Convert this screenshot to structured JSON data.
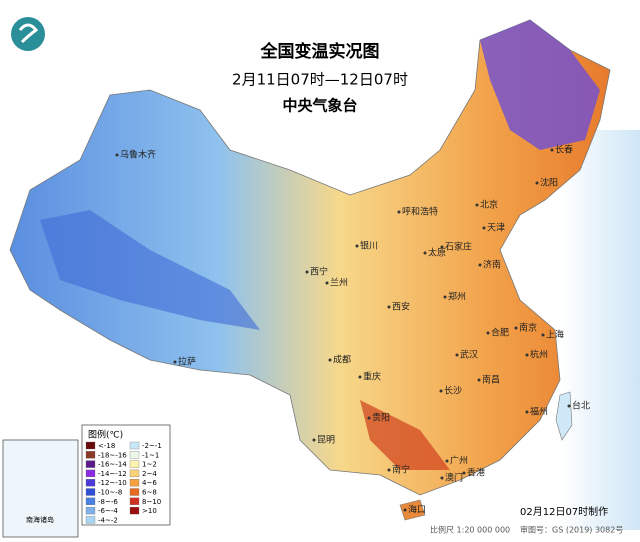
{
  "title": "全国变温实况图",
  "subtitle": "2月11日07时—12日07时",
  "agency": "中央气象台",
  "cities": [
    "乌鲁木齐",
    "呼和浩特",
    "北京",
    "长春",
    "沈阳",
    "天津",
    "石家庄",
    "太原",
    "银川",
    "济南",
    "西宁",
    "兰州",
    "郑州",
    "西安",
    "合肥",
    "南京",
    "上海",
    "拉萨",
    "成都",
    "武汉",
    "杭州",
    "重庆",
    "长沙",
    "南昌",
    "福州",
    "台北",
    "贵阳",
    "昆明",
    "南宁",
    "广州",
    "澳门",
    "香港",
    "海口"
  ],
  "legend": {
    "title": "图例(℃)",
    "items": [
      {
        "label": "<-18",
        "color": "#6b0a0a"
      },
      {
        "label": "-18~-16",
        "color": "#8b3a2a"
      },
      {
        "label": "-16~-14",
        "color": "#5b1a8b"
      },
      {
        "label": "-14~-12",
        "color": "#8a2be2"
      },
      {
        "label": "-12~-10",
        "color": "#4b3bd8"
      },
      {
        "label": "-10~-8",
        "color": "#2f4fd8"
      },
      {
        "label": "-8~-6",
        "color": "#4a7fe0"
      },
      {
        "label": "-6~-4",
        "color": "#7fb0ec"
      },
      {
        "label": "-4~-2",
        "color": "#a8d4f5"
      },
      {
        "label": "-2~-1",
        "color": "#c8e8f8"
      },
      {
        "label": "-1~1",
        "color": "#eef8e8"
      },
      {
        "label": "1~2",
        "color": "#fff3b0"
      },
      {
        "label": "2~4",
        "color": "#fbd27a"
      },
      {
        "label": "4~6",
        "color": "#f5a040"
      },
      {
        "label": "6~8",
        "color": "#e86a20"
      },
      {
        "label": "8~10",
        "color": "#d03020"
      },
      {
        "label": ">10",
        "color": "#9a1010"
      }
    ]
  },
  "inset_label": "南海诸岛",
  "made_time": "02月12日07时制作",
  "scale": "比例尺 1:20 000 000",
  "approval": "审图号：GS (2019) 3082号"
}
